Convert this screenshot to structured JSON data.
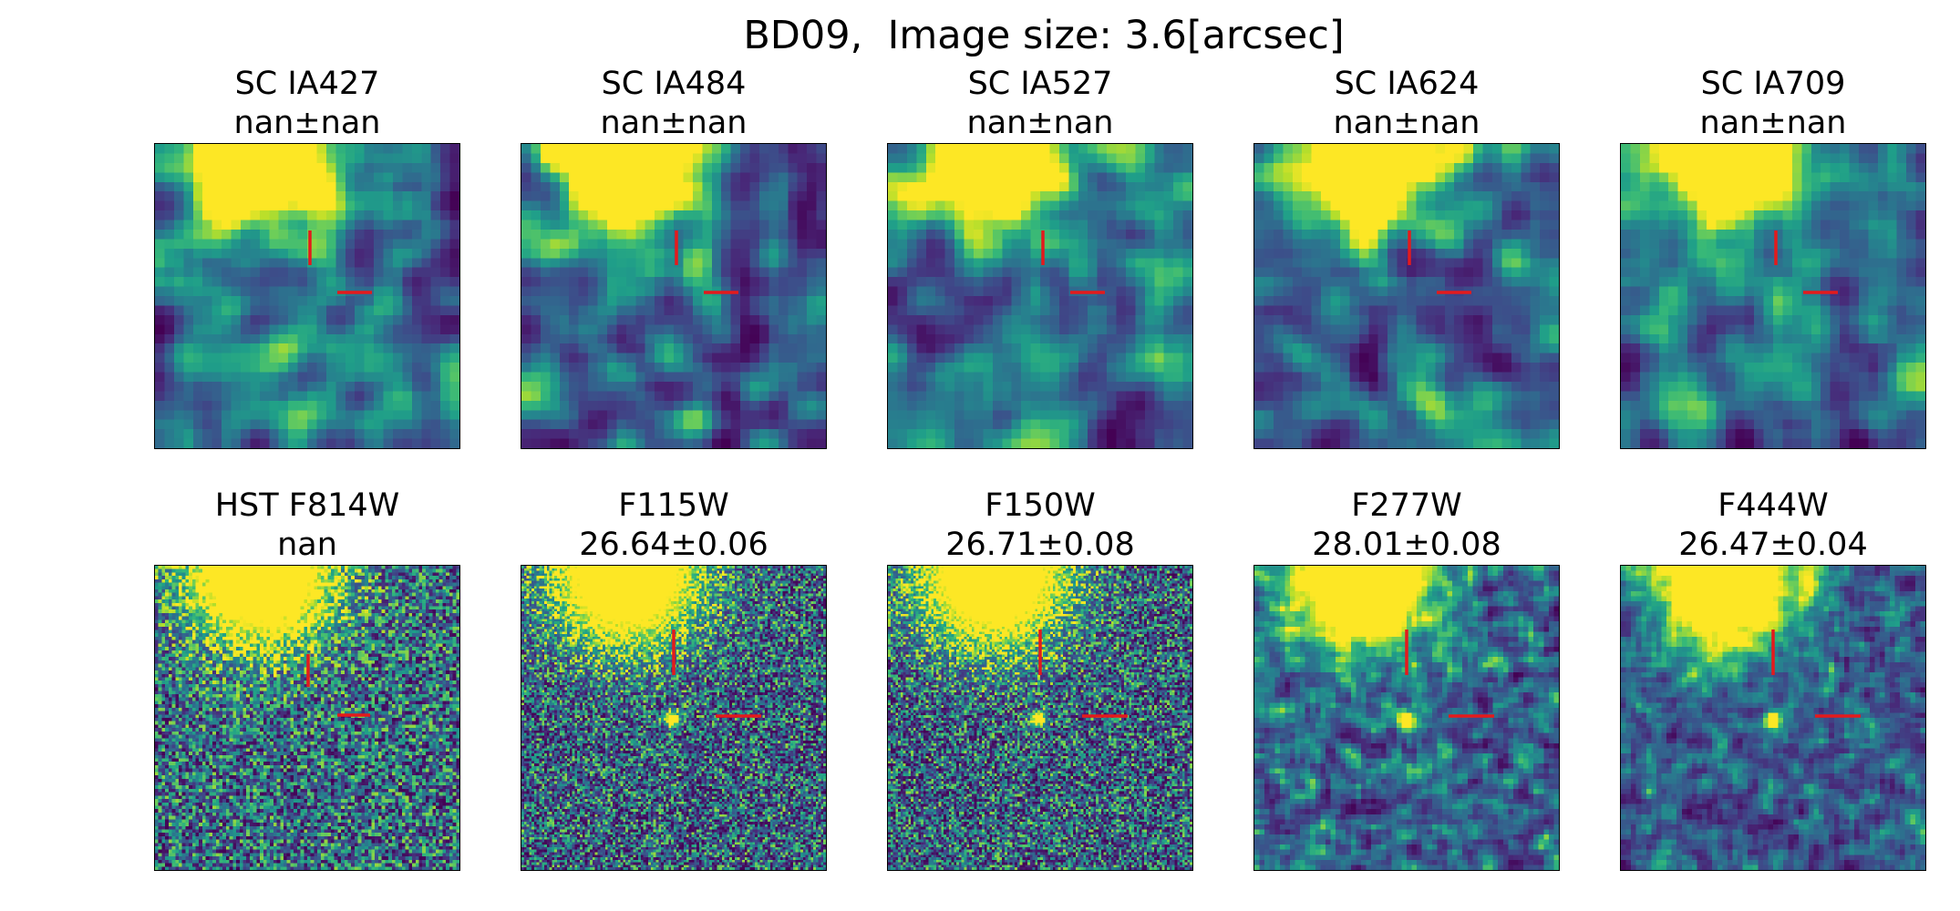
{
  "figure": {
    "suptitle": "BD09,  Image size: 3.6[arcsec]",
    "marker_color": "#e41a1c",
    "colormap": "viridis"
  },
  "panels": [
    {
      "band": "SC IA427",
      "value": "nan±nan",
      "pix": 32,
      "bright_source": false
    },
    {
      "band": "SC IA484",
      "value": "nan±nan",
      "pix": 32,
      "bright_source": false
    },
    {
      "band": "SC IA527",
      "value": "nan±nan",
      "pix": 32,
      "bright_source": false
    },
    {
      "band": "SC IA624",
      "value": "nan±nan",
      "pix": 32,
      "bright_source": false
    },
    {
      "band": "SC IA709",
      "value": "nan±nan",
      "pix": 32,
      "bright_source": false
    },
    {
      "band": "HST F814W",
      "value": "nan",
      "pix": 90,
      "bright_source": false
    },
    {
      "band": "F115W",
      "value": "26.64±0.06",
      "pix": 120,
      "bright_source": true
    },
    {
      "band": "F150W",
      "value": "26.71±0.08",
      "pix": 120,
      "bright_source": true
    },
    {
      "band": "F277W",
      "value": "28.01±0.08",
      "pix": 60,
      "bright_source": true
    },
    {
      "band": "F444W",
      "value": "26.47±0.04",
      "pix": 60,
      "bright_source": true
    }
  ]
}
